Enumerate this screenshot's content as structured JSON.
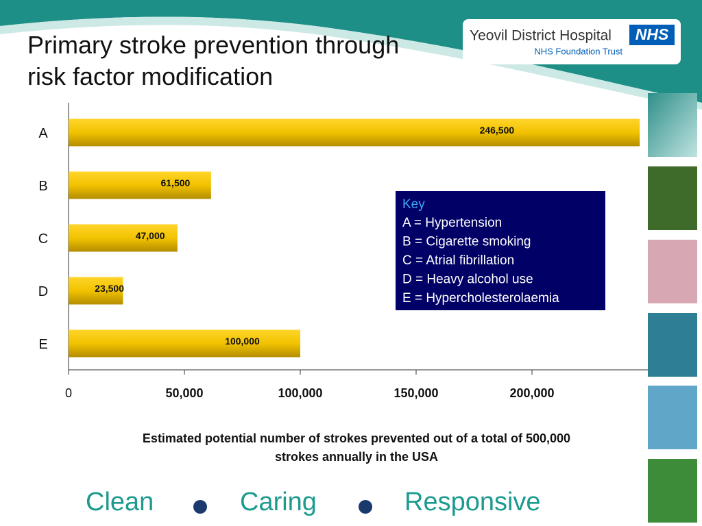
{
  "chart_data": {
    "type": "hbar",
    "title": "Primary stroke prevention through risk factor modification",
    "categories": [
      "A",
      "B",
      "C",
      "D",
      "E"
    ],
    "values": [
      246500,
      61500,
      47000,
      23500,
      100000
    ],
    "value_labels": [
      "246,500",
      "61,500",
      "47,000",
      "23,500",
      "100,000"
    ],
    "color": "#f2c200",
    "xlim": [
      0,
      250000
    ],
    "xticks": [
      0,
      {
        "value": 50000,
        "label": "50,000"
      },
      {
        "value": 100000,
        "label": "100,000"
      },
      {
        "value": 150000,
        "label": "150,000"
      },
      {
        "value": 200000,
        "label": "200,000"
      }
    ],
    "xlabel": "Estimated potential number of strokes prevented out of a total of 500,000 strokes annually in the USA",
    "key": {
      "title": "Key",
      "lines": [
        "A = Hypertension",
        "B = Cigarette smoking",
        "C = Atrial fibrillation",
        "D = Heavy alcohol use",
        "E = Hypercholesterolaemia"
      ]
    }
  },
  "header": {
    "hospital": "Yeovil District Hospital",
    "badge": "NHS",
    "trust": "NHS Foundation Trust"
  },
  "footer": {
    "words": [
      "Clean",
      "Caring",
      "Responsive"
    ]
  }
}
